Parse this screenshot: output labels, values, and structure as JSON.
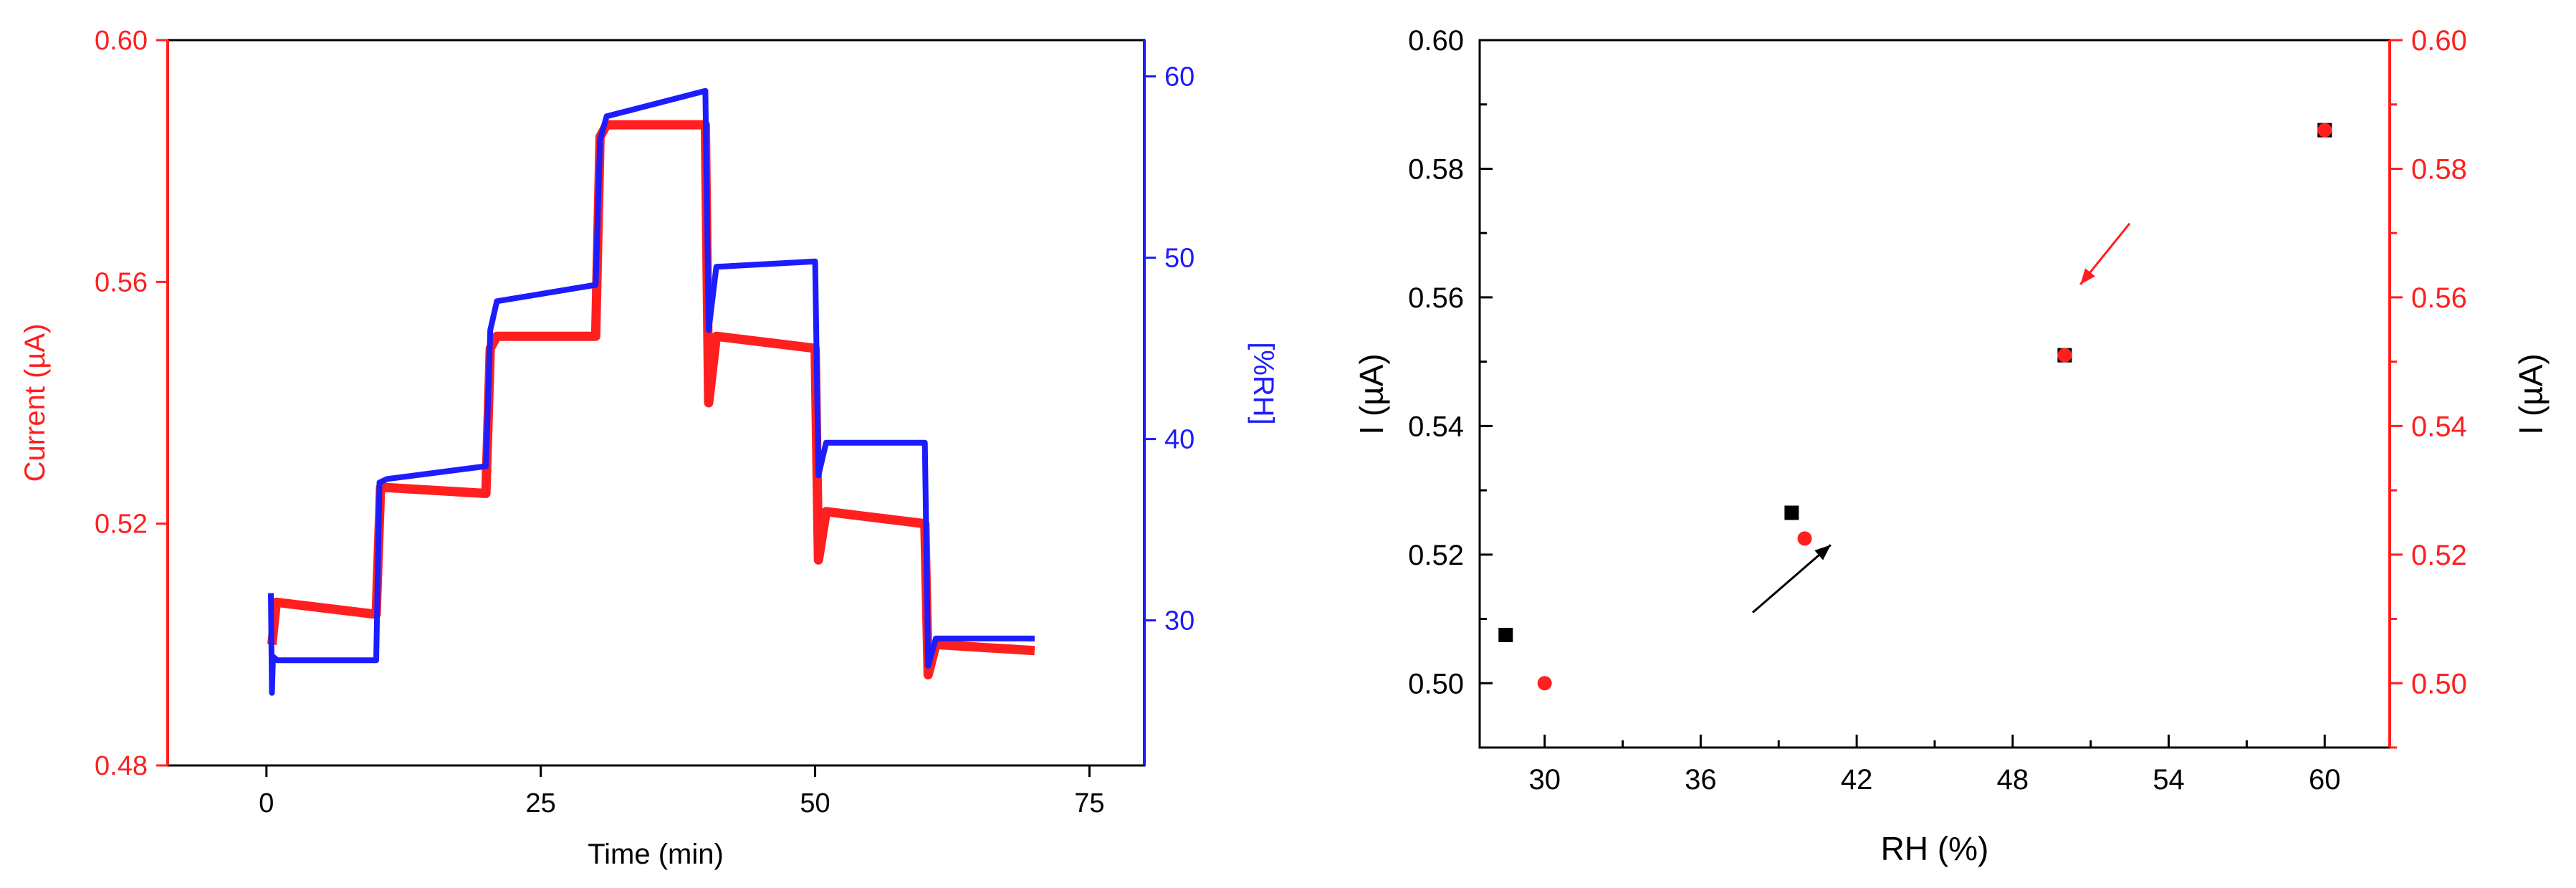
{
  "colors": {
    "red": "#ff1f1f",
    "blue": "#1c1cff",
    "black": "#000000"
  },
  "chart_data": [
    {
      "type": "line",
      "xlabel": "Time (min)",
      "ylabel_left": "Current (µA)",
      "ylabel_right": "[%RH]",
      "xlim": [
        -9,
        80
      ],
      "ylim_left": [
        0.48,
        0.6
      ],
      "ylim_right": [
        22,
        62
      ],
      "x_ticks": [
        "0",
        "25",
        "50",
        "75"
      ],
      "y_left_ticks": [
        "0.48",
        "0.52",
        "0.56",
        "0.60"
      ],
      "y_right_ticks": [
        "30",
        "40",
        "50",
        "60"
      ],
      "series": [
        {
          "axis": "left",
          "color": "#ff1f1f",
          "x": [
            0.5,
            0.9,
            10,
            10.4,
            10.8,
            20,
            20.4,
            21,
            30,
            30.4,
            31,
            40,
            40.3,
            41,
            50,
            50.3,
            51,
            60,
            60.3,
            61,
            70
          ],
          "y": [
            0.5,
            0.507,
            0.505,
            0.526,
            0.526,
            0.525,
            0.549,
            0.551,
            0.551,
            0.584,
            0.586,
            0.586,
            0.54,
            0.551,
            0.549,
            0.514,
            0.522,
            0.52,
            0.495,
            0.5,
            0.499
          ]
        },
        {
          "axis": "right",
          "color": "#1c1cff",
          "x": [
            0.4,
            0.5,
            0.6,
            1,
            10,
            10.3,
            11,
            20,
            20.4,
            21,
            30,
            30.4,
            31,
            40,
            40.3,
            41,
            50,
            50.3,
            51,
            60,
            60.3,
            61,
            70
          ],
          "y": [
            31.5,
            26,
            28,
            27.8,
            27.8,
            37.6,
            37.8,
            38.5,
            46,
            47.6,
            48.5,
            56.5,
            57.8,
            59.2,
            46,
            49.5,
            49.8,
            38,
            39.8,
            39.8,
            27.5,
            29,
            29
          ]
        }
      ]
    },
    {
      "type": "scatter",
      "xlabel": "RH (%)",
      "ylabel_left": "I (µA)",
      "ylabel_right": "I (µA)",
      "xlim": [
        27.5,
        62.5
      ],
      "ylim": [
        0.49,
        0.6
      ],
      "x_ticks": [
        "30",
        "36",
        "42",
        "48",
        "54",
        "60"
      ],
      "y_left_ticks": [
        "0.50",
        "0.52",
        "0.54",
        "0.56",
        "0.58",
        "0.60"
      ],
      "y_right_ticks": [
        "0.50",
        "0.52",
        "0.54",
        "0.56",
        "0.58",
        "0.60"
      ],
      "series": [
        {
          "marker": "square",
          "color": "#000000",
          "x": [
            28.5,
            39.5,
            50,
            60
          ],
          "y": [
            0.5075,
            0.5265,
            0.551,
            0.586
          ]
        },
        {
          "marker": "circle",
          "color": "#ff1f1f",
          "x": [
            30,
            40,
            50,
            60
          ],
          "y": [
            0.5,
            0.5225,
            0.551,
            0.586
          ]
        }
      ],
      "annotations": [
        {
          "type": "arrow",
          "color": "#000000",
          "from": [
            38,
            0.511
          ],
          "to": [
            41,
            0.5215
          ]
        },
        {
          "type": "arrow",
          "color": "#ff1f1f",
          "from": [
            52.5,
            0.5715
          ],
          "to": [
            50.6,
            0.562
          ]
        }
      ]
    }
  ]
}
